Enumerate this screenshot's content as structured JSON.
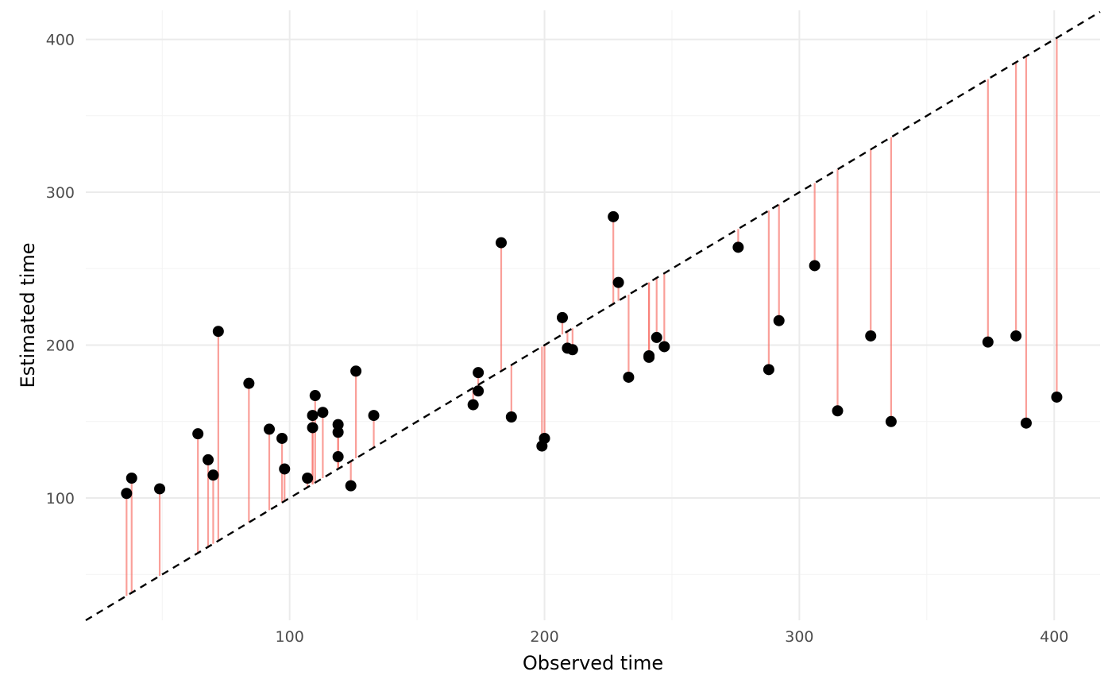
{
  "chart_data": {
    "type": "scatter",
    "xlabel": "Observed time",
    "ylabel": "Estimated time",
    "xlim": [
      20,
      418
    ],
    "ylim": [
      20,
      419
    ],
    "x_ticks": [
      100,
      200,
      300,
      400
    ],
    "y_ticks": [
      100,
      200,
      300,
      400
    ],
    "x_minor": [
      50,
      150,
      250,
      350
    ],
    "y_minor": [
      50,
      150,
      250,
      350
    ],
    "grid": true,
    "reference_line": {
      "slope": 1,
      "intercept": 0,
      "style": "dashed",
      "color": "#000000"
    },
    "residual_color": "#f8766d",
    "point_color": "#000000",
    "points": [
      {
        "x": 36,
        "y": 103
      },
      {
        "x": 38,
        "y": 113
      },
      {
        "x": 49,
        "y": 106
      },
      {
        "x": 64,
        "y": 142
      },
      {
        "x": 68,
        "y": 125
      },
      {
        "x": 70,
        "y": 115
      },
      {
        "x": 72,
        "y": 209
      },
      {
        "x": 84,
        "y": 175
      },
      {
        "x": 92,
        "y": 145
      },
      {
        "x": 97,
        "y": 139
      },
      {
        "x": 98,
        "y": 119
      },
      {
        "x": 107,
        "y": 113
      },
      {
        "x": 109,
        "y": 154
      },
      {
        "x": 109,
        "y": 146
      },
      {
        "x": 110,
        "y": 167
      },
      {
        "x": 113,
        "y": 156
      },
      {
        "x": 119,
        "y": 148
      },
      {
        "x": 119,
        "y": 143
      },
      {
        "x": 119,
        "y": 127
      },
      {
        "x": 124,
        "y": 108
      },
      {
        "x": 126,
        "y": 183
      },
      {
        "x": 133,
        "y": 154
      },
      {
        "x": 172,
        "y": 161
      },
      {
        "x": 174,
        "y": 182
      },
      {
        "x": 174,
        "y": 170
      },
      {
        "x": 183,
        "y": 267
      },
      {
        "x": 187,
        "y": 153
      },
      {
        "x": 199,
        "y": 134
      },
      {
        "x": 200,
        "y": 139
      },
      {
        "x": 207,
        "y": 218
      },
      {
        "x": 209,
        "y": 198
      },
      {
        "x": 211,
        "y": 197
      },
      {
        "x": 227,
        "y": 284
      },
      {
        "x": 229,
        "y": 241
      },
      {
        "x": 233,
        "y": 179
      },
      {
        "x": 241,
        "y": 193
      },
      {
        "x": 241,
        "y": 192
      },
      {
        "x": 244,
        "y": 205
      },
      {
        "x": 247,
        "y": 199
      },
      {
        "x": 276,
        "y": 264
      },
      {
        "x": 288,
        "y": 184
      },
      {
        "x": 292,
        "y": 216
      },
      {
        "x": 306,
        "y": 252
      },
      {
        "x": 315,
        "y": 157
      },
      {
        "x": 328,
        "y": 206
      },
      {
        "x": 336,
        "y": 150
      },
      {
        "x": 374,
        "y": 202
      },
      {
        "x": 385,
        "y": 206
      },
      {
        "x": 389,
        "y": 149
      },
      {
        "x": 401,
        "y": 166
      }
    ]
  }
}
